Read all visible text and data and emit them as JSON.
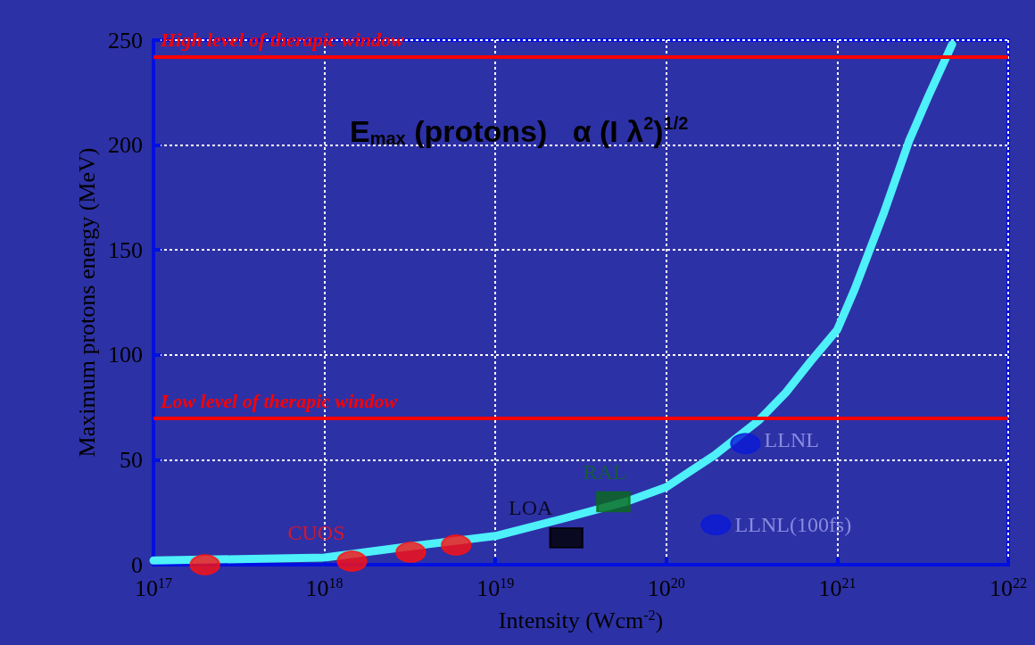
{
  "chart_data": {
    "type": "line",
    "xlabel": "Intensity (Wcm$^{-2}$)",
    "ylabel": "Maximum protons energy (MeV)",
    "annotations": [
      "E$_{max}$ (protons)   α (I λ$^{2}$)$^{1/2}$"
    ],
    "log": "x",
    "xlim": [
      1e+17,
      1e+22
    ],
    "xticks": [
      {
        "value": 1e+17,
        "label": "10$^{17}$"
      },
      {
        "value": 1e+18,
        "label": "10$^{18}$"
      },
      {
        "value": 1e+19,
        "label": "10$^{19}$"
      },
      {
        "value": 1e+20,
        "label": "10$^{20}$"
      },
      {
        "value": 1e+21,
        "label": "10$^{21}$"
      },
      {
        "value": 1e+22,
        "label": "10$^{22}$"
      }
    ],
    "ylim": [
      0,
      250
    ],
    "yticks": [
      0,
      50,
      100,
      150,
      200,
      250
    ],
    "grid": true,
    "legend": false,
    "series": [
      {
        "color": "#4ef0fa",
        "marker": "none",
        "line_style": "solid",
        "x": [
          1e+17,
          1e+18,
          3e+18,
          1e+19,
          2.5e+19,
          5.8e+19,
          1e+20,
          1.9e+20,
          3.5e+20,
          5e+20,
          7e+20,
          1e+21,
          1.26e+21,
          1.86e+21,
          2.63e+21,
          3.4e+21,
          4.7e+21
        ],
        "values": [
          2,
          3.4,
          8.5,
          13.7,
          22,
          30,
          37,
          52,
          69,
          82,
          97,
          112,
          131,
          167,
          202,
          223,
          248
        ]
      },
      {
        "type": "scatter",
        "name": "CUOS",
        "color": "#ff1010",
        "marker": "circle",
        "x": [
          2e+17,
          1.45e+18,
          3.2e+18,
          5.9e+18
        ],
        "values": [
          0,
          1.7,
          6,
          9.4
        ]
      },
      {
        "type": "scatter",
        "name": "LOA",
        "color": "#000000",
        "marker": "square",
        "x": [
          2.6e+19
        ],
        "values": [
          12.8
        ]
      },
      {
        "type": "scatter",
        "name": "RAL",
        "color": "#0a6a1c",
        "marker": "square",
        "x": [
          4.9e+19
        ],
        "values": [
          30
        ]
      },
      {
        "type": "scatter",
        "name": "LLNL",
        "color": "#0a1ad8",
        "marker": "circle",
        "x": [
          2.9e+20
        ],
        "values": [
          57.7
        ]
      },
      {
        "type": "scatter",
        "name": "LLNL(100fs)",
        "color": "#0a1ad8",
        "marker": "circle",
        "x": [
          1.95e+20
        ],
        "values": [
          19
        ]
      }
    ],
    "ref_lines": [
      {
        "axis": "y",
        "value": 242,
        "label": "High level of therapic window",
        "color": "#ff0000"
      },
      {
        "axis": "y",
        "value": 70,
        "label": "Low level of therapic window",
        "color": "#ff0000"
      }
    ]
  }
}
